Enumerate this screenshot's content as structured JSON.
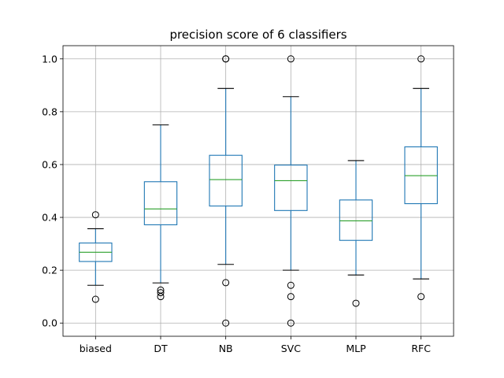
{
  "chart_data": {
    "type": "box",
    "title": "precision score of 6 classifiers",
    "xlabel": "",
    "ylabel": "",
    "ylim": [
      -0.05,
      1.05
    ],
    "yticks": [
      "0.0",
      "0.2",
      "0.4",
      "0.6",
      "0.8",
      "1.0"
    ],
    "grid": true,
    "colors": {
      "box": "#1f77b4",
      "median": "#2ca02c",
      "grid": "#b0b0b0",
      "whisker_cap": "#000000"
    },
    "categories": [
      "biased",
      "DT",
      "NB",
      "SVC",
      "MLP",
      "RFC"
    ],
    "series": [
      {
        "category": "biased",
        "q1": 0.233,
        "median": 0.268,
        "q3": 0.303,
        "whisker_low": 0.143,
        "whisker_high": 0.357,
        "outliers": [
          0.41,
          0.09
        ]
      },
      {
        "category": "DT",
        "q1": 0.372,
        "median": 0.432,
        "q3": 0.535,
        "whisker_low": 0.152,
        "whisker_high": 0.75,
        "outliers": [
          0.125,
          0.115,
          0.1
        ]
      },
      {
        "category": "NB",
        "q1": 0.443,
        "median": 0.543,
        "q3": 0.635,
        "whisker_low": 0.222,
        "whisker_high": 0.888,
        "outliers": [
          1.0,
          1.0,
          0.153,
          0.0
        ]
      },
      {
        "category": "SVC",
        "q1": 0.426,
        "median": 0.539,
        "q3": 0.598,
        "whisker_low": 0.2,
        "whisker_high": 0.857,
        "outliers": [
          1.0,
          0.143,
          0.1,
          0.0
        ]
      },
      {
        "category": "MLP",
        "q1": 0.313,
        "median": 0.387,
        "q3": 0.466,
        "whisker_low": 0.182,
        "whisker_high": 0.615,
        "outliers": [
          0.075
        ]
      },
      {
        "category": "RFC",
        "q1": 0.452,
        "median": 0.558,
        "q3": 0.667,
        "whisker_low": 0.167,
        "whisker_high": 0.888,
        "outliers": [
          1.0,
          0.1
        ]
      }
    ]
  }
}
